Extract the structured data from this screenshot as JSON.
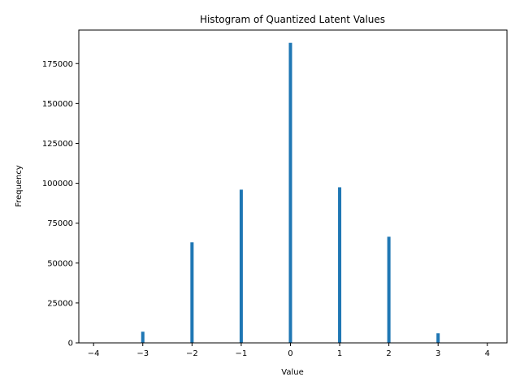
{
  "chart_data": {
    "type": "bar",
    "title": "Histogram of Quantized Latent Values",
    "xlabel": "Value",
    "ylabel": "Frequency",
    "x": [
      -3,
      -2,
      -1,
      0,
      1,
      2,
      3
    ],
    "values": [
      7000,
      63000,
      96000,
      188000,
      97500,
      66500,
      6000
    ],
    "xlim": [
      -4.3,
      4.4
    ],
    "ylim": [
      0,
      196000
    ],
    "xticks": [
      "−4",
      "−3",
      "−2",
      "−1",
      "0",
      "1",
      "2",
      "3",
      "4"
    ],
    "yticks": [
      "0",
      "25000",
      "50000",
      "75000",
      "100000",
      "125000",
      "150000",
      "175000"
    ],
    "bar_color": "#1f77b4",
    "grid": false,
    "legend": "none"
  }
}
